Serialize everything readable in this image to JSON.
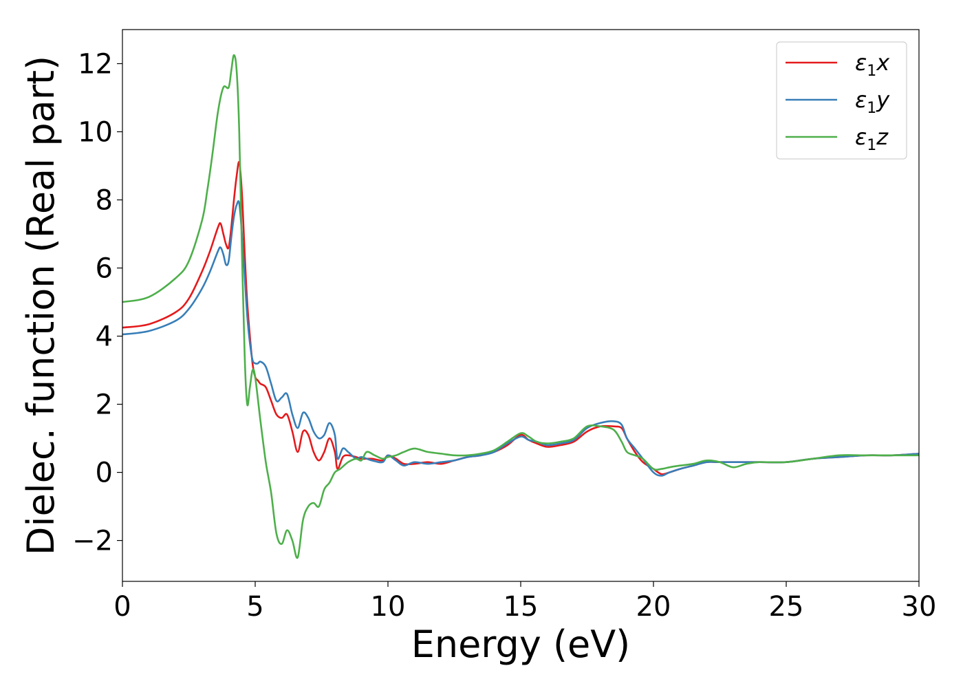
{
  "chart_data": {
    "type": "line",
    "title": "",
    "xlabel": "Energy (eV)",
    "ylabel": "Dielec. function (Real part)",
    "xlim": [
      0,
      30
    ],
    "ylim": [
      -3.2,
      13.0
    ],
    "xticks": [
      0,
      5,
      10,
      15,
      20,
      25,
      30
    ],
    "yticks": [
      -2,
      0,
      2,
      4,
      6,
      8,
      10,
      12
    ],
    "grid": false,
    "legend_position": "top-right",
    "series": [
      {
        "name": "ε1x",
        "legend": {
          "symbol": "ε",
          "sub": "1",
          "axis": "x"
        },
        "color": "#e41a1c",
        "x": [
          0,
          1,
          2,
          2.5,
          3,
          3.3,
          3.6,
          3.7,
          3.8,
          3.9,
          4.0,
          4.1,
          4.2,
          4.3,
          4.4,
          4.5,
          4.6,
          4.7,
          4.8,
          4.9,
          5.0,
          5.1,
          5.2,
          5.4,
          5.6,
          5.8,
          6.0,
          6.2,
          6.4,
          6.6,
          6.8,
          7.0,
          7.2,
          7.4,
          7.6,
          7.8,
          8.0,
          8.1,
          8.3,
          8.5,
          8.8,
          9.0,
          9.4,
          9.8,
          10.0,
          10.3,
          10.6,
          11.0,
          11.5,
          12.0,
          12.5,
          13.0,
          13.5,
          14.0,
          14.5,
          15.0,
          15.3,
          15.6,
          16.0,
          16.5,
          17.0,
          17.5,
          18.0,
          18.5,
          18.8,
          19.0,
          19.3,
          19.6,
          20.0,
          20.3,
          20.6,
          21.0,
          21.5,
          22.0,
          22.5,
          23.0,
          24.0,
          25.0,
          26.0,
          27.0,
          28.0,
          29.0,
          30.0
        ],
        "values": [
          4.25,
          4.35,
          4.7,
          5.1,
          5.9,
          6.5,
          7.2,
          7.3,
          7.0,
          6.7,
          6.6,
          7.2,
          8.0,
          8.7,
          9.1,
          8.2,
          6.5,
          5.0,
          4.0,
          3.2,
          2.8,
          2.7,
          2.6,
          2.5,
          2.1,
          1.7,
          1.6,
          1.7,
          1.2,
          0.6,
          1.2,
          1.1,
          0.6,
          0.35,
          0.6,
          1.0,
          0.6,
          0.1,
          0.45,
          0.5,
          0.45,
          0.4,
          0.4,
          0.35,
          0.5,
          0.4,
          0.25,
          0.25,
          0.3,
          0.25,
          0.35,
          0.45,
          0.5,
          0.6,
          0.8,
          1.1,
          0.95,
          0.85,
          0.75,
          0.8,
          0.9,
          1.2,
          1.35,
          1.35,
          1.3,
          1.0,
          0.6,
          0.3,
          0.1,
          -0.05,
          0.0,
          0.1,
          0.2,
          0.3,
          0.3,
          0.3,
          0.3,
          0.3,
          0.4,
          0.45,
          0.5,
          0.5,
          0.55
        ]
      },
      {
        "name": "ε1y",
        "legend": {
          "symbol": "ε",
          "sub": "1",
          "axis": "y"
        },
        "color": "#377eb8",
        "x": [
          0,
          1,
          2,
          2.5,
          3,
          3.3,
          3.6,
          3.7,
          3.8,
          3.9,
          4.0,
          4.1,
          4.2,
          4.3,
          4.4,
          4.5,
          4.6,
          4.7,
          4.8,
          4.9,
          5.0,
          5.1,
          5.2,
          5.4,
          5.6,
          5.8,
          6.0,
          6.2,
          6.4,
          6.6,
          6.8,
          7.0,
          7.2,
          7.4,
          7.6,
          7.8,
          8.0,
          8.1,
          8.3,
          8.5,
          8.8,
          9.0,
          9.4,
          9.8,
          10.0,
          10.3,
          10.6,
          11.0,
          11.5,
          12.0,
          12.5,
          13.0,
          13.5,
          14.0,
          14.5,
          15.0,
          15.3,
          15.6,
          16.0,
          16.5,
          17.0,
          17.5,
          18.0,
          18.5,
          18.8,
          19.0,
          19.3,
          19.6,
          20.0,
          20.3,
          20.6,
          21.0,
          21.5,
          22.0,
          22.5,
          23.0,
          24.0,
          25.0,
          26.0,
          27.0,
          28.0,
          29.0,
          30.0
        ],
        "values": [
          4.05,
          4.15,
          4.45,
          4.8,
          5.4,
          5.9,
          6.5,
          6.6,
          6.4,
          6.1,
          6.2,
          6.9,
          7.5,
          7.85,
          7.9,
          7.0,
          5.8,
          4.6,
          3.8,
          3.3,
          3.2,
          3.2,
          3.25,
          3.1,
          2.6,
          2.1,
          2.2,
          2.3,
          1.7,
          1.3,
          1.75,
          1.6,
          1.2,
          1.0,
          1.1,
          1.45,
          1.1,
          0.4,
          0.7,
          0.6,
          0.4,
          0.45,
          0.35,
          0.3,
          0.5,
          0.35,
          0.2,
          0.3,
          0.25,
          0.3,
          0.35,
          0.45,
          0.5,
          0.6,
          0.85,
          1.05,
          0.95,
          0.9,
          0.8,
          0.85,
          0.95,
          1.3,
          1.45,
          1.5,
          1.4,
          1.0,
          0.7,
          0.4,
          0.0,
          -0.1,
          0.0,
          0.1,
          0.2,
          0.3,
          0.3,
          0.3,
          0.3,
          0.3,
          0.4,
          0.45,
          0.5,
          0.5,
          0.55
        ]
      },
      {
        "name": "ε1z",
        "legend": {
          "symbol": "ε",
          "sub": "1",
          "axis": "z"
        },
        "color": "#4daf4a",
        "x": [
          0,
          1,
          2,
          2.5,
          3,
          3.2,
          3.4,
          3.6,
          3.8,
          4.0,
          4.1,
          4.2,
          4.3,
          4.4,
          4.5,
          4.6,
          4.7,
          4.8,
          4.9,
          5.0,
          5.2,
          5.4,
          5.6,
          5.8,
          6.0,
          6.2,
          6.4,
          6.6,
          6.8,
          7.0,
          7.2,
          7.4,
          7.6,
          7.8,
          8.0,
          8.2,
          8.5,
          8.8,
          9.0,
          9.2,
          9.5,
          9.8,
          10.0,
          10.3,
          10.6,
          11.0,
          11.5,
          12.0,
          12.5,
          13.0,
          13.5,
          14.0,
          14.5,
          15.0,
          15.3,
          15.6,
          16.0,
          16.5,
          17.0,
          17.5,
          18.0,
          18.5,
          18.8,
          19.0,
          19.3,
          19.6,
          20.0,
          20.3,
          20.6,
          21.0,
          21.5,
          22.0,
          22.5,
          23.0,
          23.5,
          24.0,
          25.0,
          26.0,
          27.0,
          28.0,
          29.0,
          30.0
        ],
        "values": [
          5.0,
          5.15,
          5.7,
          6.2,
          7.4,
          8.3,
          9.4,
          10.6,
          11.3,
          11.3,
          11.8,
          12.25,
          11.8,
          10.0,
          6.5,
          3.5,
          2.0,
          2.5,
          3.0,
          2.8,
          1.5,
          0.3,
          -0.6,
          -1.8,
          -2.1,
          -1.7,
          -2.0,
          -2.5,
          -1.4,
          -1.0,
          -0.9,
          -1.0,
          -0.5,
          -0.3,
          0.0,
          0.1,
          0.3,
          0.4,
          0.35,
          0.6,
          0.5,
          0.4,
          0.45,
          0.5,
          0.6,
          0.7,
          0.6,
          0.55,
          0.5,
          0.5,
          0.55,
          0.65,
          0.9,
          1.15,
          1.05,
          0.9,
          0.85,
          0.9,
          1.0,
          1.35,
          1.35,
          1.25,
          0.9,
          0.6,
          0.5,
          0.4,
          0.1,
          0.1,
          0.15,
          0.2,
          0.25,
          0.35,
          0.3,
          0.15,
          0.25,
          0.3,
          0.3,
          0.4,
          0.5,
          0.5,
          0.5,
          0.5
        ]
      }
    ]
  }
}
